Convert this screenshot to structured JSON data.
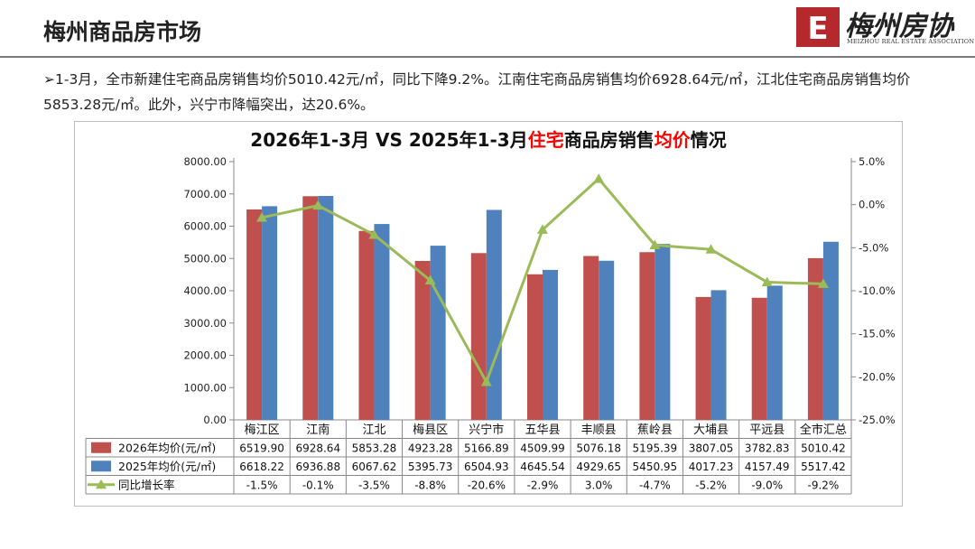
{
  "header": {
    "title": "梅州商品房市场",
    "logo_text": "梅州房协",
    "logo_subtext": "MEIZHOU REAL ESTATE ASSOCIATION",
    "logo_mark_text": "E"
  },
  "summary": {
    "bullet": "➢",
    "text": "1-3月，全市新建住宅商品房销售均价5010.42元/㎡，同比下降9.2%。江南住宅商品房销售均价6928.64元/㎡，江北住宅商品房销售均价5853.28元/㎡。此外，兴宁市降幅突出，达20.6%。"
  },
  "colors": {
    "series_2026": "#c0504d",
    "series_2025": "#4f81bd",
    "growth_line": "#9bbb59",
    "title_red": "#ff0000",
    "logo_red": "#b5282b"
  },
  "chart_data": {
    "type": "bar",
    "title_parts": [
      {
        "text": "2026年1-3月 VS 2025年1-3月",
        "highlight": false
      },
      {
        "text": "住宅",
        "highlight": true
      },
      {
        "text": "商品房销售",
        "highlight": false
      },
      {
        "text": "均价",
        "highlight": true
      },
      {
        "text": "情况",
        "highlight": false
      }
    ],
    "categories": [
      "梅江区",
      "江南",
      "江北",
      "梅县区",
      "兴宁市",
      "五华县",
      "丰顺县",
      "蕉岭县",
      "大埔县",
      "平远县",
      "全市汇总"
    ],
    "series": [
      {
        "name": "2026年均价(元/㎡)",
        "type": "bar",
        "axis": "left",
        "values": [
          6519.9,
          6928.64,
          5853.28,
          4923.28,
          5166.89,
          4509.99,
          5076.18,
          5195.39,
          3807.05,
          3782.83,
          5010.42
        ]
      },
      {
        "name": "2025年均价(元/㎡)",
        "type": "bar",
        "axis": "left",
        "values": [
          6618.22,
          6936.88,
          6067.62,
          5395.73,
          6504.93,
          4645.54,
          4929.65,
          5450.95,
          4017.23,
          4157.49,
          5517.42
        ]
      },
      {
        "name": "同比增长率",
        "type": "line",
        "axis": "right",
        "values": [
          -1.5,
          -0.1,
          -3.5,
          -8.8,
          -20.6,
          -2.9,
          3.0,
          -4.7,
          -5.2,
          -9.0,
          -9.2
        ]
      }
    ],
    "table": [
      [
        "6519.90",
        "6928.64",
        "5853.28",
        "4923.28",
        "5166.89",
        "4509.99",
        "5076.18",
        "5195.39",
        "3807.05",
        "3782.83",
        "5010.42"
      ],
      [
        "6618.22",
        "6936.88",
        "6067.62",
        "5395.73",
        "6504.93",
        "4645.54",
        "4929.65",
        "5450.95",
        "4017.23",
        "4157.49",
        "5517.42"
      ],
      [
        "-1.5%",
        "-0.1%",
        "-3.5%",
        "-8.8%",
        "-20.6%",
        "-2.9%",
        "3.0%",
        "-4.7%",
        "-5.2%",
        "-9.0%",
        "-9.2%"
      ]
    ],
    "y_left": {
      "min": 0,
      "max": 8000,
      "step": 1000,
      "tick_labels": [
        "0.00",
        "1000.00",
        "2000.00",
        "3000.00",
        "4000.00",
        "5000.00",
        "6000.00",
        "7000.00",
        "8000.00"
      ]
    },
    "y_right": {
      "min": -25,
      "max": 5,
      "step": 5,
      "tick_labels": [
        "-25.0%",
        "-20.0%",
        "-15.0%",
        "-10.0%",
        "-5.0%",
        "0.0%",
        "5.0%"
      ]
    },
    "legend_placement": "data-table-left"
  }
}
